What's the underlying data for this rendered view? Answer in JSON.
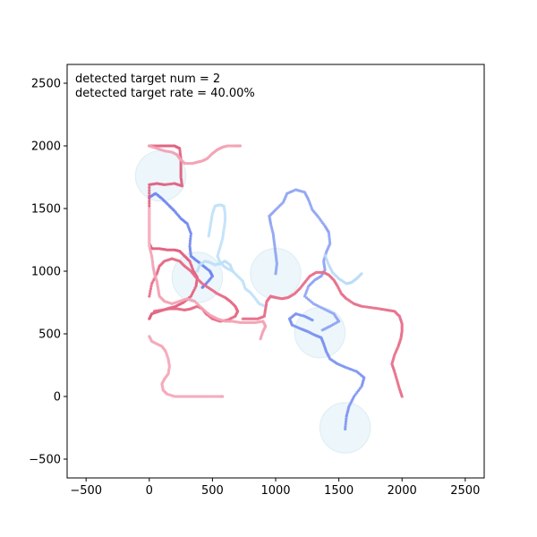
{
  "chart_data": {
    "type": "scatter",
    "title": "",
    "xlabel": "",
    "ylabel": "",
    "xlim": [
      -650,
      2650
    ],
    "ylim": [
      -650,
      2650
    ],
    "grid": false,
    "xticks": [
      -500,
      0,
      500,
      1000,
      1500,
      2000,
      2500
    ],
    "yticks": [
      -500,
      0,
      500,
      1000,
      1500,
      2000,
      2500
    ],
    "annotations": [
      "detected target num = 2",
      "detected target rate = 40.00%"
    ],
    "sensing_regions": {
      "color": "#add8e6",
      "radius": 200,
      "centers": [
        [
          90,
          1760
        ],
        [
          380,
          950
        ],
        [
          1000,
          980
        ],
        [
          1350,
          510
        ],
        [
          1550,
          -250
        ]
      ]
    },
    "series": [
      {
        "name": "blue-track",
        "color": "#6f86f0",
        "points": [
          [
            0,
            1590
          ],
          [
            50,
            1620
          ],
          [
            100,
            1580
          ],
          [
            150,
            1530
          ],
          [
            200,
            1480
          ],
          [
            250,
            1420
          ],
          [
            300,
            1380
          ],
          [
            330,
            1300
          ],
          [
            320,
            1200
          ],
          [
            330,
            1120
          ],
          [
            380,
            1080
          ],
          [
            430,
            1040
          ],
          [
            480,
            1000
          ],
          [
            500,
            960
          ],
          [
            450,
            900
          ],
          [
            420,
            870
          ]
        ]
      },
      {
        "name": "blue-track-2",
        "color": "#7a92f2",
        "points": [
          [
            1550,
            -260
          ],
          [
            1560,
            -160
          ],
          [
            1580,
            -80
          ],
          [
            1620,
            0
          ],
          [
            1680,
            80
          ],
          [
            1700,
            150
          ],
          [
            1640,
            200
          ],
          [
            1560,
            230
          ],
          [
            1490,
            260
          ],
          [
            1430,
            300
          ],
          [
            1400,
            360
          ],
          [
            1380,
            420
          ],
          [
            1360,
            470
          ],
          [
            1310,
            490
          ],
          [
            1250,
            520
          ],
          [
            1200,
            540
          ],
          [
            1130,
            570
          ],
          [
            1110,
            620
          ],
          [
            1160,
            660
          ],
          [
            1230,
            640
          ],
          [
            1290,
            610
          ]
        ]
      },
      {
        "name": "blue-track-3",
        "color": "#8ea3f4",
        "points": [
          [
            1000,
            980
          ],
          [
            1010,
            1060
          ],
          [
            1000,
            1140
          ],
          [
            990,
            1220
          ],
          [
            980,
            1300
          ],
          [
            960,
            1380
          ],
          [
            950,
            1440
          ],
          [
            1000,
            1490
          ],
          [
            1060,
            1550
          ],
          [
            1090,
            1620
          ],
          [
            1160,
            1650
          ],
          [
            1230,
            1630
          ],
          [
            1260,
            1570
          ],
          [
            1290,
            1490
          ],
          [
            1340,
            1430
          ],
          [
            1390,
            1360
          ],
          [
            1420,
            1310
          ],
          [
            1430,
            1220
          ],
          [
            1400,
            1150
          ],
          [
            1380,
            1080
          ],
          [
            1390,
            1010
          ],
          [
            1360,
            960
          ],
          [
            1310,
            930
          ],
          [
            1260,
            880
          ],
          [
            1230,
            800
          ],
          [
            1300,
            740
          ],
          [
            1380,
            700
          ],
          [
            1460,
            660
          ],
          [
            1500,
            600
          ],
          [
            1430,
            560
          ],
          [
            1370,
            530
          ]
        ]
      },
      {
        "name": "lightblue-track",
        "color": "#b9dcf7",
        "points": [
          [
            1390,
            1130
          ],
          [
            1420,
            1050
          ],
          [
            1450,
            990
          ],
          [
            1500,
            940
          ],
          [
            1560,
            900
          ],
          [
            1600,
            910
          ],
          [
            1640,
            940
          ],
          [
            1680,
            980
          ]
        ]
      },
      {
        "name": "lightblue-track-2",
        "color": "#c2e2f8",
        "points": [
          [
            470,
            1280
          ],
          [
            480,
            1340
          ],
          [
            490,
            1400
          ],
          [
            500,
            1460
          ],
          [
            520,
            1520
          ],
          [
            560,
            1530
          ],
          [
            590,
            1520
          ],
          [
            600,
            1460
          ],
          [
            600,
            1400
          ],
          [
            590,
            1330
          ],
          [
            580,
            1260
          ],
          [
            560,
            1190
          ],
          [
            540,
            1120
          ],
          [
            560,
            1070
          ],
          [
            590,
            1040
          ],
          [
            620,
            1020
          ],
          [
            660,
            1000
          ],
          [
            700,
            960
          ],
          [
            740,
            920
          ],
          [
            760,
            860
          ],
          [
            800,
            830
          ],
          [
            840,
            780
          ],
          [
            870,
            740
          ],
          [
            920,
            720
          ]
        ]
      },
      {
        "name": "lightblue-track-3",
        "color": "#bfe0f7",
        "points": [
          [
            380,
            1000
          ],
          [
            400,
            1050
          ],
          [
            440,
            1080
          ],
          [
            480,
            1070
          ],
          [
            520,
            1050
          ],
          [
            560,
            1060
          ],
          [
            600,
            1080
          ],
          [
            640,
            1050
          ],
          [
            660,
            1000
          ]
        ]
      },
      {
        "name": "red-track",
        "color": "#e06080",
        "points": [
          [
            0,
            2000
          ],
          [
            80,
            2000
          ],
          [
            140,
            2000
          ],
          [
            200,
            2000
          ],
          [
            240,
            1980
          ],
          [
            250,
            1900
          ],
          [
            250,
            1820
          ],
          [
            250,
            1750
          ],
          [
            260,
            1680
          ],
          [
            200,
            1700
          ],
          [
            120,
            1690
          ],
          [
            60,
            1700
          ],
          [
            0,
            1690
          ],
          [
            0,
            1580
          ],
          [
            0,
            1480
          ],
          [
            0,
            1380
          ],
          [
            0,
            1300
          ],
          [
            0,
            1220
          ],
          [
            20,
            1180
          ],
          [
            80,
            1180
          ],
          [
            140,
            1170
          ],
          [
            200,
            1170
          ],
          [
            240,
            1160
          ],
          [
            280,
            1120
          ],
          [
            320,
            1080
          ],
          [
            350,
            1000
          ],
          [
            380,
            950
          ],
          [
            370,
            880
          ],
          [
            330,
            800
          ],
          [
            270,
            750
          ],
          [
            210,
            720
          ],
          [
            140,
            700
          ],
          [
            80,
            680
          ],
          [
            20,
            660
          ],
          [
            0,
            620
          ]
        ]
      },
      {
        "name": "red-track-2",
        "color": "#e56a86",
        "points": [
          [
            0,
            800
          ],
          [
            20,
            900
          ],
          [
            60,
            980
          ],
          [
            80,
            1040
          ],
          [
            120,
            1080
          ],
          [
            180,
            1100
          ],
          [
            240,
            1080
          ],
          [
            280,
            1040
          ],
          [
            330,
            1000
          ],
          [
            370,
            950
          ],
          [
            420,
            900
          ],
          [
            480,
            860
          ],
          [
            540,
            820
          ],
          [
            600,
            790
          ],
          [
            640,
            760
          ],
          [
            680,
            720
          ],
          [
            700,
            680
          ],
          [
            680,
            640
          ],
          [
            620,
            610
          ],
          [
            560,
            600
          ],
          [
            500,
            620
          ],
          [
            450,
            660
          ],
          [
            420,
            700
          ],
          [
            380,
            720
          ],
          [
            330,
            700
          ],
          [
            280,
            690
          ],
          [
            220,
            700
          ],
          [
            160,
            700
          ],
          [
            100,
            690
          ],
          [
            40,
            680
          ]
        ]
      },
      {
        "name": "red-track-3",
        "color": "#e8708c",
        "points": [
          [
            2000,
            0
          ],
          [
            1980,
            60
          ],
          [
            1960,
            130
          ],
          [
            1940,
            200
          ],
          [
            1920,
            260
          ],
          [
            1940,
            330
          ],
          [
            1970,
            400
          ],
          [
            1990,
            460
          ],
          [
            2000,
            520
          ],
          [
            2000,
            580
          ],
          [
            1980,
            640
          ],
          [
            1940,
            680
          ],
          [
            1880,
            690
          ],
          [
            1820,
            700
          ],
          [
            1750,
            710
          ],
          [
            1680,
            720
          ],
          [
            1620,
            740
          ],
          [
            1560,
            780
          ],
          [
            1520,
            820
          ],
          [
            1490,
            880
          ],
          [
            1460,
            930
          ],
          [
            1420,
            970
          ],
          [
            1380,
            990
          ],
          [
            1320,
            990
          ],
          [
            1270,
            960
          ],
          [
            1230,
            910
          ],
          [
            1190,
            860
          ],
          [
            1150,
            820
          ],
          [
            1100,
            790
          ],
          [
            1050,
            780
          ],
          [
            1000,
            790
          ],
          [
            960,
            800
          ],
          [
            930,
            760
          ],
          [
            920,
            700
          ],
          [
            910,
            640
          ],
          [
            860,
            620
          ],
          [
            800,
            620
          ],
          [
            740,
            620
          ]
        ]
      },
      {
        "name": "pink-track",
        "color": "#f3a3b5",
        "points": [
          [
            0,
            2000
          ],
          [
            60,
            1980
          ],
          [
            120,
            1960
          ],
          [
            180,
            1950
          ],
          [
            220,
            1930
          ],
          [
            240,
            1900
          ],
          [
            280,
            1860
          ],
          [
            340,
            1860
          ],
          [
            380,
            1870
          ],
          [
            420,
            1880
          ],
          [
            460,
            1900
          ],
          [
            500,
            1940
          ],
          [
            540,
            1970
          ],
          [
            580,
            1990
          ],
          [
            620,
            2000
          ],
          [
            680,
            2000
          ],
          [
            720,
            2000
          ]
        ]
      },
      {
        "name": "pink-track-2",
        "color": "#f5aabb",
        "points": [
          [
            0,
            480
          ],
          [
            20,
            440
          ],
          [
            60,
            420
          ],
          [
            100,
            400
          ],
          [
            130,
            360
          ],
          [
            150,
            300
          ],
          [
            160,
            240
          ],
          [
            150,
            180
          ],
          [
            120,
            140
          ],
          [
            100,
            100
          ],
          [
            110,
            50
          ],
          [
            140,
            20
          ],
          [
            200,
            0
          ],
          [
            260,
            0
          ],
          [
            320,
            0
          ],
          [
            380,
            0
          ],
          [
            440,
            0
          ],
          [
            500,
            0
          ],
          [
            560,
            0
          ],
          [
            580,
            0
          ]
        ]
      },
      {
        "name": "pink-track-3",
        "color": "#f3a3b5",
        "points": [
          [
            0,
            1200
          ],
          [
            20,
            1120
          ],
          [
            30,
            1040
          ],
          [
            40,
            980
          ],
          [
            60,
            920
          ],
          [
            70,
            860
          ],
          [
            80,
            800
          ],
          [
            120,
            760
          ],
          [
            180,
            740
          ],
          [
            240,
            760
          ],
          [
            300,
            780
          ],
          [
            360,
            760
          ],
          [
            420,
            700
          ],
          [
            480,
            650
          ],
          [
            540,
            620
          ],
          [
            600,
            600
          ],
          [
            660,
            600
          ],
          [
            720,
            590
          ],
          [
            780,
            590
          ],
          [
            840,
            590
          ],
          [
            900,
            600
          ],
          [
            920,
            560
          ],
          [
            900,
            520
          ],
          [
            880,
            460
          ]
        ]
      },
      {
        "name": "pink-track-4",
        "color": "#f7b5c3",
        "points": [
          [
            0,
            1500
          ],
          [
            0,
            1440
          ],
          [
            0,
            1380
          ],
          [
            0,
            1320
          ],
          [
            0,
            1260
          ],
          [
            0,
            1200
          ]
        ]
      }
    ]
  }
}
